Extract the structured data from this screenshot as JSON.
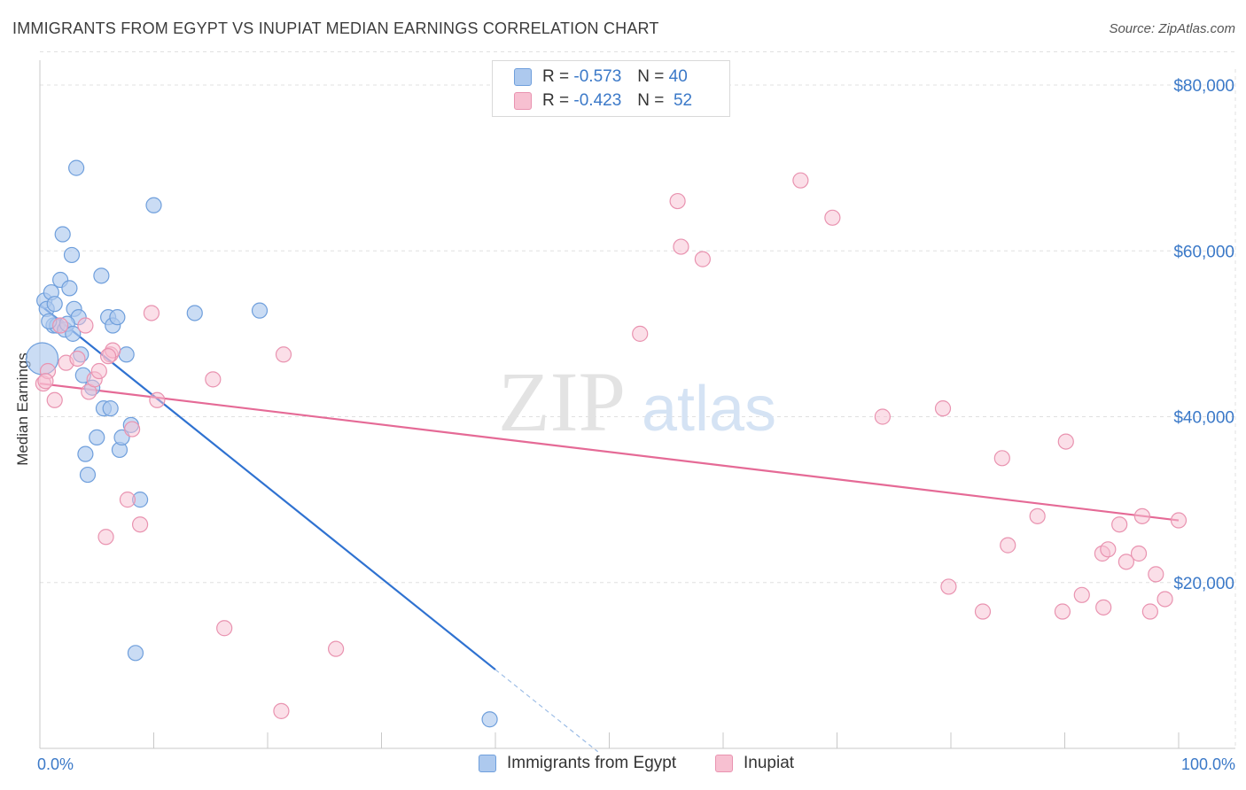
{
  "title": "IMMIGRANTS FROM EGYPT VS INUPIAT MEDIAN EARNINGS CORRELATION CHART",
  "source": "Source: ZipAtlas.com",
  "watermark": {
    "zip": "ZIP",
    "atlas": "atlas"
  },
  "legend": {
    "rows": [
      {
        "r_label": "R =",
        "r_value": "-0.573",
        "n_label": "N =",
        "n_value": "40"
      },
      {
        "r_label": "R =",
        "r_value": "-0.423",
        "n_label": "N =",
        "n_value": "52"
      }
    ]
  },
  "bottom_legend": {
    "series1": "Immigrants from Egypt",
    "series2": "Inupiat"
  },
  "colors": {
    "blue_fill": "#adc9ee",
    "blue_stroke": "#6f9fdc",
    "blue_line": "#2f72d1",
    "pink_fill": "#f7c0d1",
    "pink_stroke": "#e993b0",
    "pink_line": "#e56a96",
    "axis_text": "#3b79c8"
  },
  "chart_data": {
    "type": "scatter",
    "title": "IMMIGRANTS FROM EGYPT VS INUPIAT MEDIAN EARNINGS CORRELATION CHART",
    "xlabel": "",
    "ylabel": "Median Earnings",
    "xlim": [
      0,
      100
    ],
    "ylim": [
      0,
      84000
    ],
    "x_tick_labels": [
      "0.0%",
      "100.0%"
    ],
    "y_ticks": [
      20000,
      40000,
      60000,
      80000
    ],
    "y_tick_labels": [
      "$20,000",
      "$40,000",
      "$60,000",
      "$80,000"
    ],
    "grid": true,
    "series": [
      {
        "name": "Immigrants from Egypt",
        "r": -0.573,
        "n": 40,
        "points": [
          [
            0.2,
            47000
          ],
          [
            0.4,
            54000
          ],
          [
            0.6,
            53000
          ],
          [
            1.0,
            55000
          ],
          [
            1.2,
            51000
          ],
          [
            1.5,
            51000
          ],
          [
            1.8,
            56500
          ],
          [
            2.0,
            62000
          ],
          [
            2.2,
            50500
          ],
          [
            2.6,
            55500
          ],
          [
            2.8,
            59500
          ],
          [
            3.0,
            53000
          ],
          [
            3.2,
            70000
          ],
          [
            3.4,
            52000
          ],
          [
            3.6,
            47500
          ],
          [
            3.8,
            45000
          ],
          [
            4.0,
            35500
          ],
          [
            4.2,
            33000
          ],
          [
            4.6,
            43500
          ],
          [
            5.0,
            37500
          ],
          [
            5.4,
            57000
          ],
          [
            5.6,
            41000
          ],
          [
            6.0,
            52000
          ],
          [
            6.2,
            41000
          ],
          [
            6.4,
            51000
          ],
          [
            6.8,
            52000
          ],
          [
            7.0,
            36000
          ],
          [
            7.2,
            37500
          ],
          [
            7.6,
            47500
          ],
          [
            8.0,
            39000
          ],
          [
            8.4,
            11500
          ],
          [
            8.8,
            30000
          ],
          [
            10.0,
            65500
          ],
          [
            13.6,
            52500
          ],
          [
            19.3,
            52800
          ],
          [
            39.5,
            3500
          ],
          [
            0.8,
            51500
          ],
          [
            2.4,
            51200
          ],
          [
            1.3,
            53600
          ],
          [
            2.9,
            50000
          ]
        ]
      },
      {
        "name": "Inupiat",
        "r": -0.423,
        "n": 52,
        "points": [
          [
            0.3,
            44000
          ],
          [
            0.7,
            45500
          ],
          [
            1.3,
            42000
          ],
          [
            1.8,
            51000
          ],
          [
            2.3,
            46500
          ],
          [
            3.3,
            47000
          ],
          [
            4.0,
            51000
          ],
          [
            4.3,
            43000
          ],
          [
            4.8,
            44500
          ],
          [
            5.2,
            45500
          ],
          [
            5.8,
            25500
          ],
          [
            6.2,
            47500
          ],
          [
            6.4,
            48000
          ],
          [
            7.7,
            30000
          ],
          [
            8.1,
            38500
          ],
          [
            8.8,
            27000
          ],
          [
            9.8,
            52500
          ],
          [
            10.3,
            42000
          ],
          [
            15.2,
            44500
          ],
          [
            16.2,
            14500
          ],
          [
            21.2,
            4500
          ],
          [
            21.4,
            47500
          ],
          [
            26.0,
            12000
          ],
          [
            52.7,
            50000
          ],
          [
            56.0,
            66000
          ],
          [
            56.3,
            60500
          ],
          [
            58.2,
            59000
          ],
          [
            66.8,
            68500
          ],
          [
            69.6,
            64000
          ],
          [
            74.0,
            40000
          ],
          [
            79.3,
            41000
          ],
          [
            79.8,
            19500
          ],
          [
            82.8,
            16500
          ],
          [
            84.5,
            35000
          ],
          [
            85.0,
            24500
          ],
          [
            87.6,
            28000
          ],
          [
            89.8,
            16500
          ],
          [
            90.1,
            37000
          ],
          [
            91.5,
            18500
          ],
          [
            93.3,
            23500
          ],
          [
            93.8,
            24000
          ],
          [
            93.4,
            17000
          ],
          [
            94.8,
            27000
          ],
          [
            95.4,
            22500
          ],
          [
            96.5,
            23500
          ],
          [
            96.8,
            28000
          ],
          [
            97.5,
            16500
          ],
          [
            98.0,
            21000
          ],
          [
            98.8,
            18000
          ],
          [
            100.0,
            27500
          ],
          [
            0.5,
            44300
          ],
          [
            6.0,
            47300
          ]
        ]
      }
    ],
    "trend_lines": [
      {
        "series": "Immigrants from Egypt",
        "x": [
          0,
          40
        ],
        "y": [
          53500,
          9500
        ],
        "extend_dashed_to_x": 49
      },
      {
        "series": "Inupiat",
        "x": [
          0,
          100
        ],
        "y": [
          44000,
          27500
        ]
      }
    ]
  }
}
